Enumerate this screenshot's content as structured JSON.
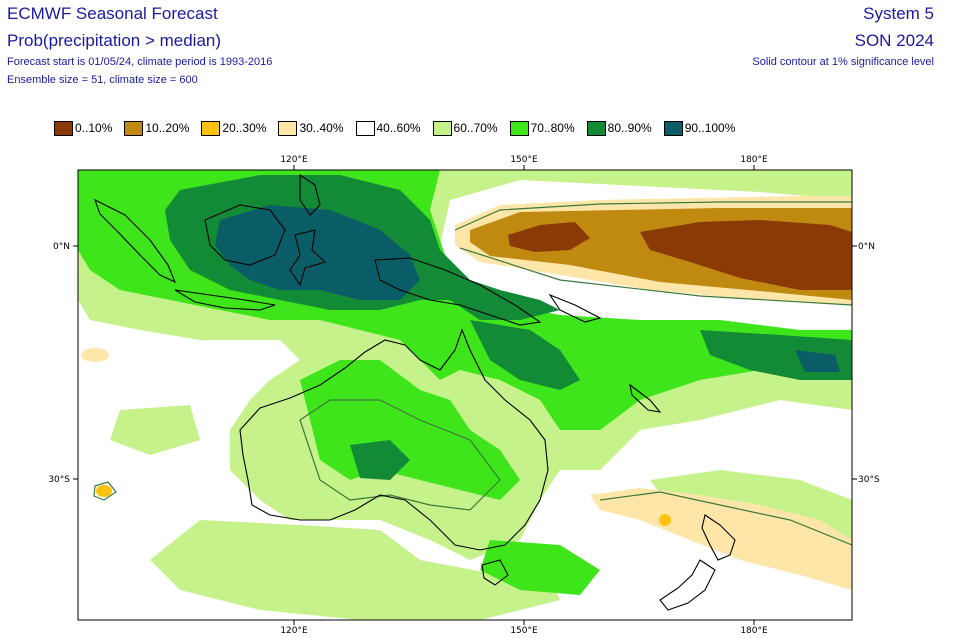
{
  "header": {
    "title": "ECMWF Seasonal Forecast",
    "subtitle": "Prob(precipitation > median)",
    "forecast_info": "Forecast start is 01/05/24, climate period is 1993-2016",
    "ensemble_info": "Ensemble size = 51, climate size = 600",
    "system": "System 5",
    "season": "SON 2024",
    "contour_note": "Solid contour at 1% significance level"
  },
  "legend": [
    {
      "label": "0..10%",
      "color": "#8b3a05"
    },
    {
      "label": "10..20%",
      "color": "#c08a10"
    },
    {
      "label": "20..30%",
      "color": "#ffc20e"
    },
    {
      "label": "30..40%",
      "color": "#fde6a8"
    },
    {
      "label": "40..60%",
      "color": "#ffffff"
    },
    {
      "label": "60..70%",
      "color": "#c5f28a"
    },
    {
      "label": "70..80%",
      "color": "#3ee51a"
    },
    {
      "label": "80..90%",
      "color": "#138a36"
    },
    {
      "label": "90..100%",
      "color": "#0a5d66"
    }
  ],
  "axes": {
    "lon_top": [
      "120°E",
      "150°E",
      "180°E"
    ],
    "lon_bottom": [
      "120°E",
      "150°E",
      "180°E"
    ],
    "lat_left": [
      "0°N",
      "30°S"
    ],
    "lat_right": [
      "0°N",
      "30°S"
    ]
  }
}
